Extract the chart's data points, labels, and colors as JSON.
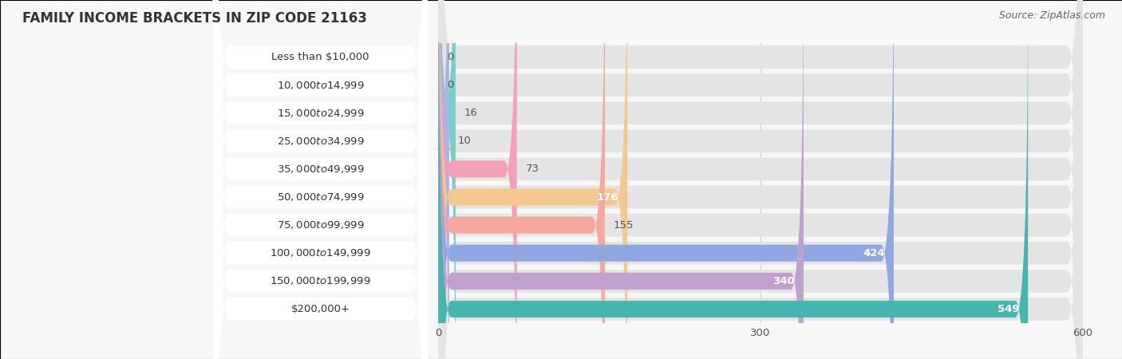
{
  "title": "FAMILY INCOME BRACKETS IN ZIP CODE 21163",
  "source": "Source: ZipAtlas.com",
  "categories": [
    "Less than $10,000",
    "$10,000 to $14,999",
    "$15,000 to $24,999",
    "$25,000 to $34,999",
    "$35,000 to $49,999",
    "$50,000 to $74,999",
    "$75,000 to $99,999",
    "$100,000 to $149,999",
    "$150,000 to $199,999",
    "$200,000+"
  ],
  "values": [
    0,
    0,
    16,
    10,
    73,
    176,
    155,
    424,
    340,
    549
  ],
  "bar_colors": [
    "#a8c8e8",
    "#d0a8d8",
    "#78d0c4",
    "#b0b0e8",
    "#f4a0b8",
    "#f4c890",
    "#f4a8a0",
    "#90a8e0",
    "#c0a0cc",
    "#48b4b0"
  ],
  "xlim": [
    0,
    600
  ],
  "xticks": [
    0,
    300,
    600
  ],
  "bg_color": "#f7f7f7",
  "bar_bg_color": "#e4e4e4",
  "white_label_bg": "#ffffff",
  "title_fontsize": 12,
  "label_fontsize": 9.5,
  "value_fontsize": 9.5,
  "source_fontsize": 9
}
